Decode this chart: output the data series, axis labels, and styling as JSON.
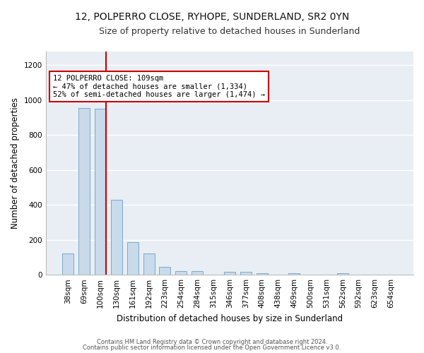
{
  "title": "12, POLPERRO CLOSE, RYHOPE, SUNDERLAND, SR2 0YN",
  "subtitle": "Size of property relative to detached houses in Sunderland",
  "xlabel": "Distribution of detached houses by size in Sunderland",
  "ylabel": "Number of detached properties",
  "categories": [
    "38sqm",
    "69sqm",
    "100sqm",
    "130sqm",
    "161sqm",
    "192sqm",
    "223sqm",
    "254sqm",
    "284sqm",
    "315sqm",
    "346sqm",
    "377sqm",
    "408sqm",
    "438sqm",
    "469sqm",
    "500sqm",
    "531sqm",
    "562sqm",
    "592sqm",
    "623sqm",
    "654sqm"
  ],
  "values": [
    120,
    955,
    950,
    430,
    185,
    120,
    45,
    20,
    20,
    0,
    15,
    18,
    10,
    0,
    10,
    0,
    0,
    10,
    0,
    0,
    0
  ],
  "bar_color": "#c9daea",
  "bar_edgecolor": "#7aaac8",
  "vline_color": "#cc0000",
  "vline_bar_index": 2,
  "annotation_text": "12 POLPERRO CLOSE: 109sqm\n← 47% of detached houses are smaller (1,334)\n52% of semi-detached houses are larger (1,474) →",
  "annotation_box_facecolor": "#ffffff",
  "annotation_box_edgecolor": "#cc0000",
  "ylim": [
    0,
    1280
  ],
  "yticks": [
    0,
    200,
    400,
    600,
    800,
    1000,
    1200
  ],
  "footer1": "Contains HM Land Registry data © Crown copyright and database right 2024.",
  "footer2": "Contains public sector information licensed under the Open Government Licence v3.0.",
  "background_color": "#ffffff",
  "plot_background_color": "#e8eef4",
  "title_fontsize": 10,
  "subtitle_fontsize": 9,
  "axis_label_fontsize": 8.5,
  "tick_fontsize": 7.5,
  "annotation_fontsize": 7.5,
  "footer_fontsize": 6
}
